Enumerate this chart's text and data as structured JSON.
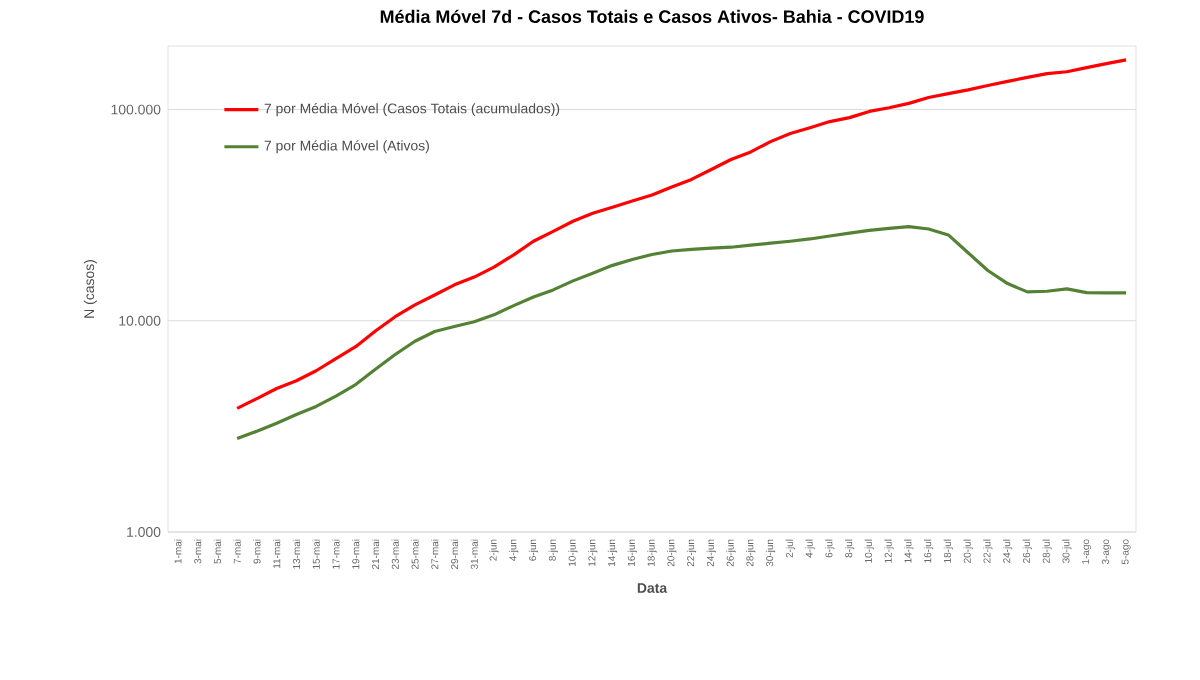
{
  "chart_data": {
    "type": "line",
    "title": "Média Móvel 7d - Casos Totais e Casos Ativos- Bahia - COVID19",
    "xlabel": "Data",
    "ylabel": "N (casos)",
    "categories": [
      "1-mai",
      "3-mai",
      "5-mai",
      "7-mai",
      "9-mai",
      "11-mai",
      "13-mai",
      "15-mai",
      "17-mai",
      "19-mai",
      "21-mai",
      "23-mai",
      "25-mai",
      "27-mai",
      "29-mai",
      "31-mai",
      "2-jun",
      "4-jun",
      "6-jun",
      "8-jun",
      "10-jun",
      "12-jun",
      "14-jun",
      "16-jun",
      "18-jun",
      "20-jun",
      "22-jun",
      "24-jun",
      "26-jun",
      "28-jun",
      "30-jun",
      "2-jul",
      "4-jul",
      "6-jul",
      "8-jul",
      "10-jul",
      "12-jul",
      "14-jul",
      "16-jul",
      "18-jul",
      "20-jul",
      "22-jul",
      "24-jul",
      "26-jul",
      "28-jul",
      "30-jul",
      "1-ago",
      "3-ago",
      "5-ago"
    ],
    "series": [
      {
        "name": "7 por Média Móvel (Casos Totais (acumulados))",
        "color": "#ff0000",
        "values": [
          null,
          null,
          null,
          3850,
          4280,
          4780,
          5200,
          5800,
          6620,
          7540,
          8950,
          10450,
          11900,
          13250,
          14800,
          16100,
          17950,
          20500,
          23800,
          26500,
          29600,
          32300,
          34500,
          36900,
          39400,
          43000,
          46700,
          52000,
          58000,
          63000,
          70500,
          77000,
          82000,
          87700,
          91600,
          98000,
          102000,
          107000,
          114000,
          119000,
          124000,
          130000,
          136000,
          142000,
          148000,
          151000,
          158000,
          165000,
          172000
        ]
      },
      {
        "name": "7 por Média Móvel (Ativos)",
        "color": "#548235",
        "values": [
          null,
          null,
          null,
          2770,
          3000,
          3270,
          3600,
          3930,
          4400,
          4990,
          5900,
          6920,
          8000,
          8900,
          9400,
          9900,
          10670,
          11800,
          12970,
          14000,
          15450,
          16800,
          18300,
          19500,
          20600,
          21400,
          21800,
          22100,
          22300,
          22800,
          23300,
          23800,
          24400,
          25200,
          26000,
          26800,
          27400,
          27900,
          27200,
          25500,
          21000,
          17300,
          15000,
          13700,
          13800,
          14150,
          13600,
          13550,
          13550
        ]
      }
    ],
    "log": "y",
    "ylim": [
      1000,
      200000
    ],
    "yticks": [
      {
        "value": 1000,
        "label": "1.000"
      },
      {
        "value": 10000,
        "label": "10.000"
      },
      {
        "value": 100000,
        "label": "100.000"
      }
    ],
    "grid": "y",
    "legend": "top left",
    "marker": "none",
    "line_style": "solid"
  }
}
